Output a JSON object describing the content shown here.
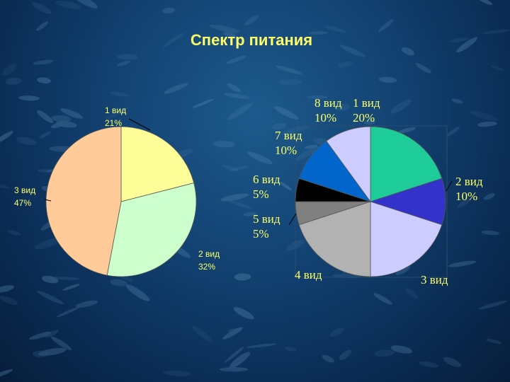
{
  "title": "Спектр питания",
  "chart_data": [
    {
      "type": "pie",
      "labels_style": "sans",
      "slices": [
        {
          "name": "1 вид",
          "percent_label": "21%",
          "value": 21,
          "color": "#ffff99"
        },
        {
          "name": "2 вид",
          "percent_label": "32%",
          "value": 32,
          "color": "#ccffcc"
        },
        {
          "name": "3 вид",
          "percent_label": "47%",
          "value": 47,
          "color": "#ffcc99"
        }
      ]
    },
    {
      "type": "pie",
      "labels_style": "serif",
      "slices": [
        {
          "name": "1 вид",
          "percent_label": "20%",
          "value": 20,
          "color": "#1ecc99"
        },
        {
          "name": "2 вид",
          "percent_label": "10%",
          "value": 10,
          "color": "#3333cc"
        },
        {
          "name": "3 вид",
          "percent_label": "",
          "value": 20,
          "color": "#ccccff"
        },
        {
          "name": "4 вид",
          "percent_label": "",
          "value": 20,
          "color": "#b2b2b2"
        },
        {
          "name": "5 вид",
          "percent_label": "5%",
          "value": 5,
          "color": "#808080"
        },
        {
          "name": "6 вид",
          "percent_label": "5%",
          "value": 5,
          "color": "#000000"
        },
        {
          "name": "7 вид",
          "percent_label": "10%",
          "value": 10,
          "color": "#0066cc"
        },
        {
          "name": "8 вид",
          "percent_label": "10%",
          "value": 10,
          "color": "#ccccff"
        }
      ]
    }
  ]
}
